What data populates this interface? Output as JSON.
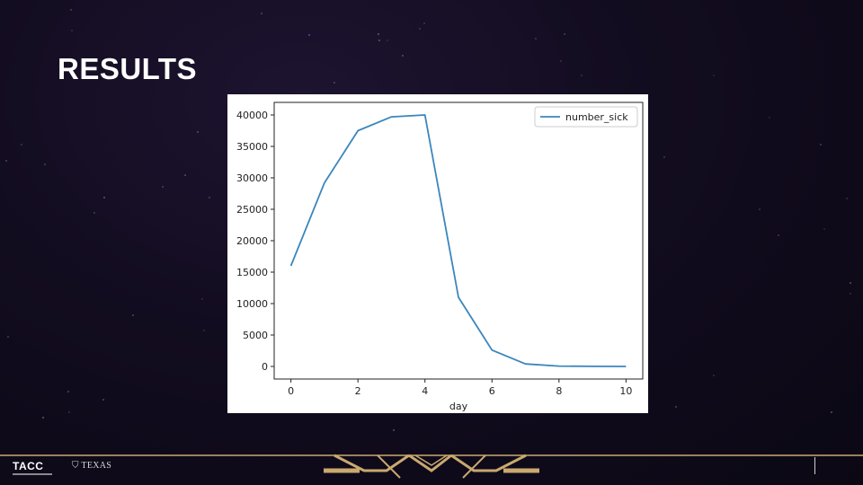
{
  "slide": {
    "title": "RESULTS",
    "footer_logo_left": "TACC",
    "footer_logo_right": "TEXAS",
    "accent_color": "#c9a96e"
  },
  "chart_data": {
    "type": "line",
    "title": "",
    "xlabel": "day",
    "ylabel": "",
    "x": [
      0,
      1,
      2,
      3,
      4,
      5,
      6,
      7,
      8,
      9,
      10
    ],
    "series": [
      {
        "name": "number_sick",
        "color": "#3b86bc",
        "values": [
          16000,
          29200,
          37500,
          39700,
          40000,
          11000,
          2600,
          400,
          60,
          10,
          0
        ]
      }
    ],
    "xlim": [
      -0.5,
      10.5
    ],
    "ylim": [
      -2000,
      42000
    ],
    "xticks": [
      0,
      2,
      4,
      6,
      8,
      10
    ],
    "yticks": [
      0,
      5000,
      10000,
      15000,
      20000,
      25000,
      30000,
      35000,
      40000
    ],
    "legend": "top-right",
    "grid": false
  }
}
